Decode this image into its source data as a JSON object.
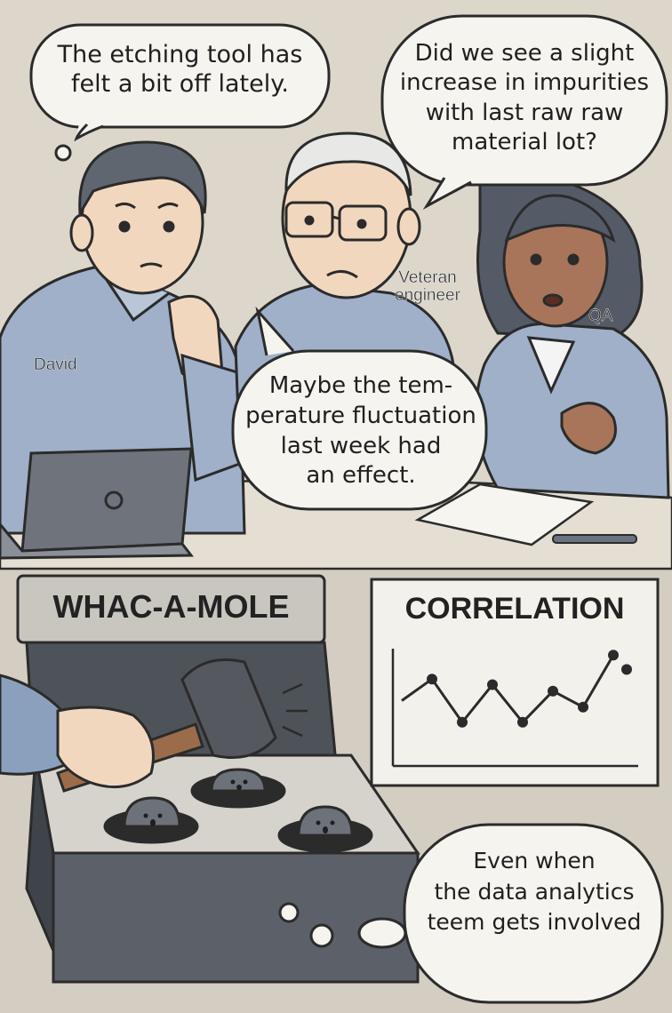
{
  "top_panel": {
    "bubble_1": [
      "The etching tool has",
      "felt a bit off lately."
    ],
    "bubble_2": [
      "Did we see a slight",
      "increase in impurities",
      "with last raw raw",
      "material lot?"
    ],
    "bubble_3": [
      "Maybe the tem-",
      "perature fluctuation",
      "last week had",
      "an effect."
    ],
    "label_david": "David",
    "label_veteran": [
      "Veteran",
      "engineer"
    ],
    "label_qa": "QA"
  },
  "bottom_panel": {
    "whac_sign": "WHAC-A-MOLE",
    "correlation_title": "CORRELATION",
    "correlation_series": [
      0.35,
      0.62,
      0.08,
      0.55,
      0.08,
      0.47,
      0.27,
      0.92
    ],
    "correlation_outlier": 0.74,
    "bubble_4": [
      "Even when",
      "the data analytics",
      "teem gets involved"
    ]
  },
  "colors": {
    "background": "#d9d3c8",
    "shirt": "#9fb0c8",
    "machine": "#5c6068",
    "outline": "#2b2b2b"
  }
}
